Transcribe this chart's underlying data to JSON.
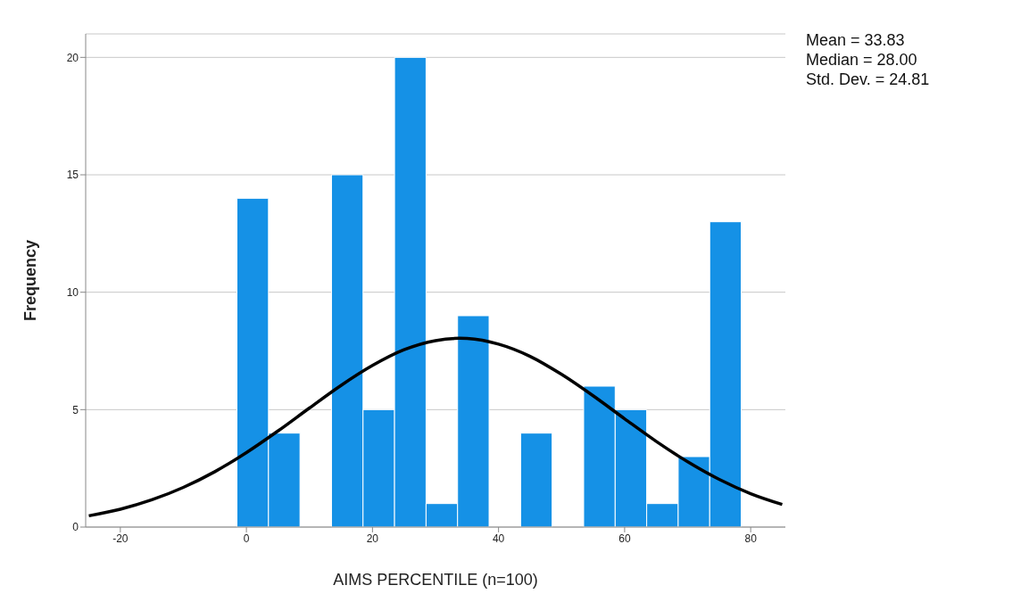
{
  "chart_data": {
    "type": "histogram",
    "xlabel": "AIMS PERCENTILE (n=100)",
    "ylabel": "Frequency",
    "bins": [
      -1.5,
      3.5,
      8.5,
      13.5,
      18.5,
      23.5,
      28.5,
      33.5,
      38.5,
      43.5,
      48.5,
      53.5,
      58.5,
      63.5,
      68.5,
      73.5,
      78.5
    ],
    "values": [
      14,
      4,
      0,
      15,
      5,
      20,
      1,
      9,
      0,
      4,
      0,
      6,
      5,
      1,
      3,
      13
    ],
    "color": "#1591e6",
    "series": [
      {
        "type": "line",
        "color": "#000000",
        "x": [
          -25,
          -20,
          -15,
          -10,
          -5,
          0,
          5,
          10,
          15,
          20,
          25,
          30,
          33.83,
          35,
          40,
          45,
          50,
          55,
          60,
          65,
          70,
          75,
          80,
          85
        ],
        "values": [
          0.48,
          0.76,
          1.16,
          1.69,
          2.36,
          3.17,
          4.09,
          5.07,
          6.03,
          6.88,
          7.55,
          7.94,
          8.04,
          8.03,
          7.79,
          7.27,
          6.5,
          5.59,
          4.61,
          3.65,
          2.78,
          2.03,
          1.42,
          0.96
        ]
      }
    ],
    "xlim": [
      -25.5,
      85.5
    ],
    "xticks": [
      -20,
      0,
      20,
      40,
      60,
      80
    ],
    "ylim": [
      0,
      21
    ],
    "yticks": [
      0,
      5,
      10,
      15,
      20
    ],
    "grid": "y",
    "marker": "none",
    "annotations": [
      "Mean = 33.83",
      "Median = 28.00",
      "Std. Dev. = 24.81"
    ]
  }
}
